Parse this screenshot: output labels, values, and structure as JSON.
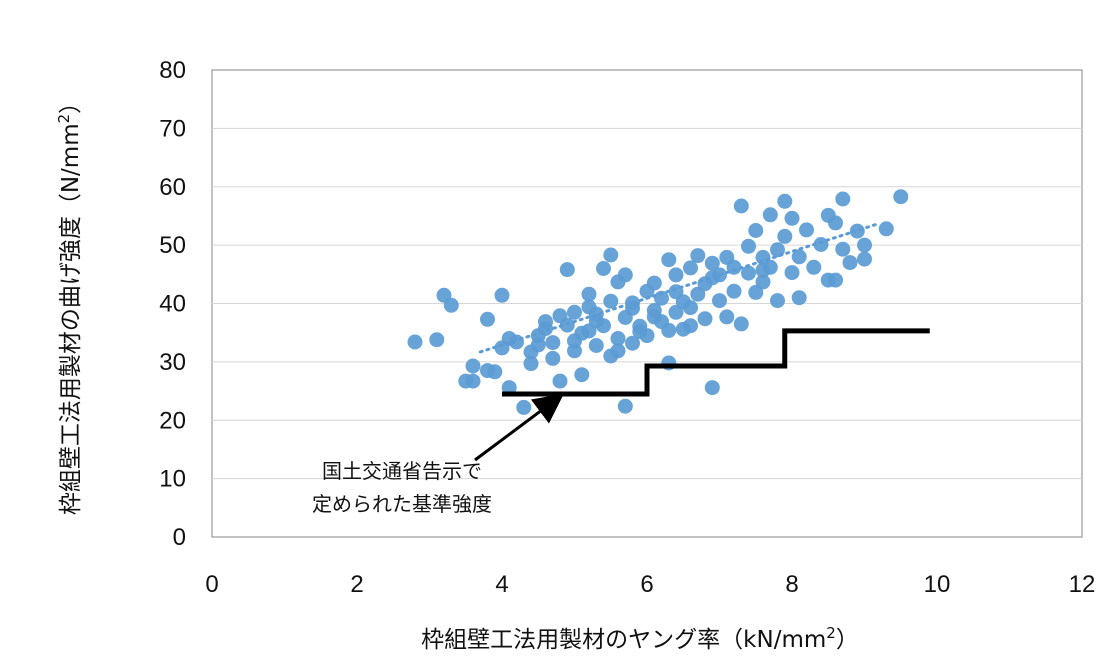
{
  "chart_data": {
    "type": "scatter",
    "title": "",
    "xlabel": {
      "main": "枠組壁工法用製材のヤング率（kN/mm",
      "sup": "2",
      "tail": "）"
    },
    "ylabel": {
      "main": "枠組壁工法用製材の曲げ強度（N/mm",
      "sup": "2",
      "tail": "）"
    },
    "xlim": [
      0,
      12
    ],
    "ylim": [
      0,
      80
    ],
    "xticks": [
      "0",
      "2",
      "4",
      "6",
      "8",
      "10",
      "12"
    ],
    "yticks": [
      "0",
      "10",
      "20",
      "30",
      "40",
      "50",
      "60",
      "70",
      "80"
    ],
    "grid": "horizontal",
    "marker_color": "#5B9BD5",
    "trendline_color": "#5B9BD5",
    "step_color": "#000000",
    "points": [
      [
        2.8,
        33.4
      ],
      [
        3.1,
        33.8
      ],
      [
        3.2,
        41.4
      ],
      [
        3.3,
        39.7
      ],
      [
        3.5,
        26.7
      ],
      [
        3.6,
        29.3
      ],
      [
        3.6,
        26.7
      ],
      [
        3.8,
        37.3
      ],
      [
        3.8,
        28.5
      ],
      [
        3.9,
        28.3
      ],
      [
        4.0,
        41.4
      ],
      [
        4.0,
        32.4
      ],
      [
        4.1,
        34.0
      ],
      [
        4.1,
        25.6
      ],
      [
        4.2,
        33.4
      ],
      [
        4.3,
        22.2
      ],
      [
        4.4,
        31.7
      ],
      [
        4.5,
        32.9
      ],
      [
        4.5,
        34.5
      ],
      [
        4.6,
        35.7
      ],
      [
        4.7,
        30.6
      ],
      [
        4.7,
        33.3
      ],
      [
        4.8,
        37.9
      ],
      [
        4.8,
        26.7
      ],
      [
        4.9,
        45.8
      ],
      [
        4.9,
        36.3
      ],
      [
        5.0,
        31.9
      ],
      [
        5.0,
        38.5
      ],
      [
        5.1,
        27.8
      ],
      [
        5.1,
        34.9
      ],
      [
        5.2,
        35.3
      ],
      [
        5.2,
        41.6
      ],
      [
        5.3,
        32.8
      ],
      [
        5.3,
        38.2
      ],
      [
        5.4,
        46.0
      ],
      [
        5.4,
        36.2
      ],
      [
        5.5,
        48.3
      ],
      [
        5.5,
        40.4
      ],
      [
        5.5,
        31.0
      ],
      [
        5.6,
        34.0
      ],
      [
        5.6,
        43.7
      ],
      [
        5.7,
        22.4
      ],
      [
        5.7,
        44.9
      ],
      [
        5.7,
        37.6
      ],
      [
        5.8,
        39.2
      ],
      [
        5.8,
        33.2
      ],
      [
        5.9,
        36.1
      ],
      [
        6.0,
        42.1
      ],
      [
        6.0,
        34.5
      ],
      [
        6.1,
        38.8
      ],
      [
        6.1,
        43.5
      ],
      [
        6.2,
        36.9
      ],
      [
        6.2,
        40.9
      ],
      [
        6.3,
        47.5
      ],
      [
        6.3,
        29.8
      ],
      [
        6.4,
        38.5
      ],
      [
        6.4,
        44.9
      ],
      [
        6.5,
        35.6
      ],
      [
        6.5,
        40.3
      ],
      [
        6.6,
        46.1
      ],
      [
        6.6,
        36.2
      ],
      [
        6.7,
        48.2
      ],
      [
        6.7,
        41.6
      ],
      [
        6.8,
        37.4
      ],
      [
        6.8,
        43.4
      ],
      [
        6.9,
        25.6
      ],
      [
        6.9,
        46.9
      ],
      [
        7.0,
        40.5
      ],
      [
        7.0,
        44.9
      ],
      [
        7.1,
        37.7
      ],
      [
        7.2,
        42.1
      ],
      [
        7.2,
        46.2
      ],
      [
        7.3,
        56.7
      ],
      [
        7.3,
        36.5
      ],
      [
        7.4,
        45.2
      ],
      [
        7.4,
        49.8
      ],
      [
        7.5,
        41.9
      ],
      [
        7.5,
        52.5
      ],
      [
        7.6,
        43.7
      ],
      [
        7.6,
        47.9
      ],
      [
        7.7,
        55.2
      ],
      [
        7.7,
        46.2
      ],
      [
        7.8,
        49.2
      ],
      [
        7.8,
        40.5
      ],
      [
        7.9,
        57.5
      ],
      [
        7.9,
        51.5
      ],
      [
        8.0,
        54.6
      ],
      [
        8.0,
        45.3
      ],
      [
        8.1,
        48.0
      ],
      [
        8.1,
        41.0
      ],
      [
        8.2,
        52.6
      ],
      [
        8.3,
        46.2
      ],
      [
        8.4,
        50.1
      ],
      [
        8.5,
        55.1
      ],
      [
        8.5,
        44.0
      ],
      [
        8.6,
        53.8
      ],
      [
        8.6,
        44.0
      ],
      [
        8.7,
        57.9
      ],
      [
        8.7,
        49.3
      ],
      [
        8.8,
        47.0
      ],
      [
        8.9,
        52.4
      ],
      [
        9.0,
        50.0
      ],
      [
        9.0,
        47.6
      ],
      [
        9.3,
        52.8
      ],
      [
        9.5,
        58.3
      ],
      [
        5.0,
        33.6
      ],
      [
        5.3,
        37.0
      ],
      [
        5.8,
        40.1
      ],
      [
        6.1,
        37.7
      ],
      [
        6.4,
        42.0
      ],
      [
        6.9,
        44.4
      ],
      [
        4.6,
        36.9
      ],
      [
        5.2,
        39.4
      ],
      [
        5.9,
        35.2
      ],
      [
        6.6,
        39.3
      ],
      [
        7.1,
        47.9
      ],
      [
        7.6,
        45.7
      ],
      [
        4.4,
        29.7
      ],
      [
        5.6,
        31.9
      ],
      [
        6.3,
        35.4
      ]
    ],
    "trendline": {
      "x_start": 3.7,
      "x_end": 9.2,
      "slope": 4.0,
      "intercept": 16.9
    },
    "standard_steps": [
      {
        "x_start": 4.0,
        "x_end": 6.0,
        "y": 24.5
      },
      {
        "x_start": 6.0,
        "x_end": 7.9,
        "y": 29.3
      },
      {
        "x_start": 7.9,
        "x_end": 9.9,
        "y": 35.3
      }
    ],
    "annotation": {
      "line1": "国土交通省告示で",
      "line2": "定められた基準強度",
      "arrow_target": [
        4.7,
        24.5
      ]
    }
  }
}
